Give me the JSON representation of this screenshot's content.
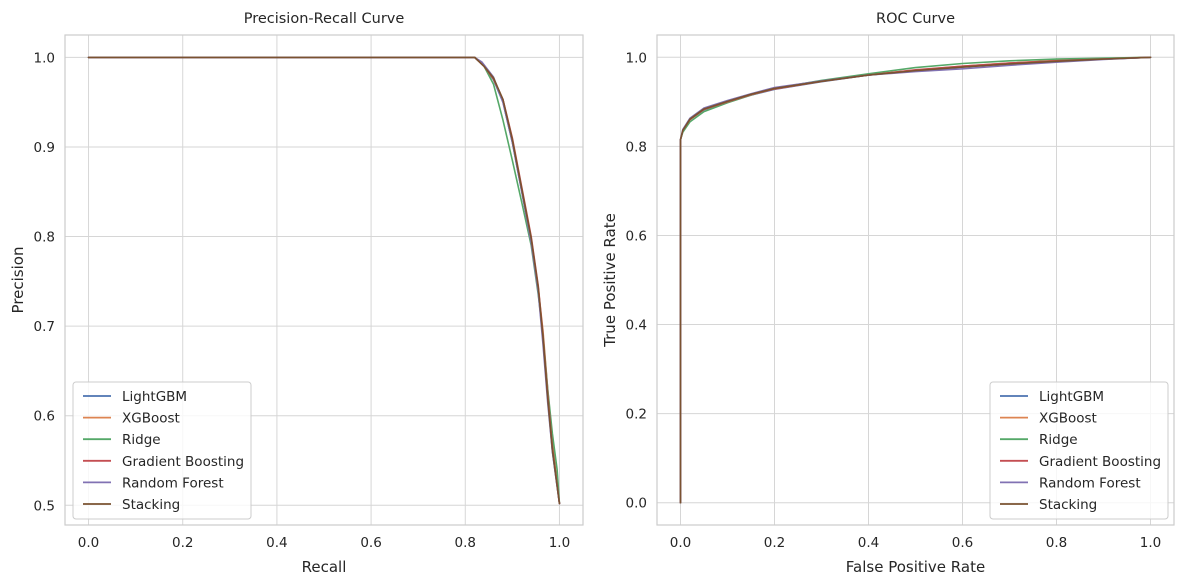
{
  "chart_data": [
    {
      "type": "line",
      "title": "Precision-Recall Curve",
      "xlabel": "Recall",
      "ylabel": "Precision",
      "xlim": [
        -0.05,
        1.05
      ],
      "ylim": [
        0.478,
        1.025
      ],
      "xticks": [
        0.0,
        0.2,
        0.4,
        0.6,
        0.8,
        1.0
      ],
      "xtick_labels": [
        "0.0",
        "0.2",
        "0.4",
        "0.6",
        "0.8",
        "1.0"
      ],
      "yticks": [
        0.5,
        0.6,
        0.7,
        0.8,
        0.9,
        1.0
      ],
      "ytick_labels": [
        "0.5",
        "0.6",
        "0.7",
        "0.8",
        "0.9",
        "1.0"
      ],
      "grid": true,
      "legend_position": "lower-left",
      "series": [
        {
          "name": "LightGBM",
          "color": "#4c72b0",
          "x": [
            0,
            0.82,
            0.84,
            0.86,
            0.88,
            0.9,
            0.92,
            0.94,
            0.955,
            0.965,
            0.975,
            0.985,
            1.0
          ],
          "y": [
            1.0,
            1.0,
            0.99,
            0.975,
            0.95,
            0.905,
            0.85,
            0.795,
            0.74,
            0.69,
            0.62,
            0.56,
            0.502
          ]
        },
        {
          "name": "XGBoost",
          "color": "#dd8452",
          "x": [
            0,
            0.82,
            0.84,
            0.86,
            0.88,
            0.9,
            0.92,
            0.94,
            0.955,
            0.965,
            0.975,
            0.985,
            1.0
          ],
          "y": [
            1.0,
            1.0,
            0.99,
            0.976,
            0.952,
            0.908,
            0.852,
            0.797,
            0.742,
            0.695,
            0.63,
            0.57,
            0.502
          ]
        },
        {
          "name": "Ridge",
          "color": "#55a868",
          "x": [
            0,
            0.82,
            0.84,
            0.86,
            0.87,
            0.88,
            0.9,
            0.92,
            0.94,
            0.955,
            0.965,
            0.975,
            0.985,
            0.995,
            1.0
          ],
          "y": [
            1.0,
            1.0,
            0.99,
            0.97,
            0.95,
            0.93,
            0.885,
            0.838,
            0.79,
            0.735,
            0.69,
            0.63,
            0.58,
            0.54,
            0.502
          ]
        },
        {
          "name": "Gradient Boosting",
          "color": "#c44e52",
          "x": [
            0,
            0.82,
            0.84,
            0.86,
            0.88,
            0.9,
            0.92,
            0.94,
            0.955,
            0.965,
            0.975,
            0.985,
            1.0
          ],
          "y": [
            1.0,
            1.0,
            0.99,
            0.976,
            0.953,
            0.91,
            0.855,
            0.8,
            0.745,
            0.69,
            0.625,
            0.565,
            0.502
          ]
        },
        {
          "name": "Random Forest",
          "color": "#8172b3",
          "x": [
            0,
            0.82,
            0.835,
            0.86,
            0.88,
            0.9,
            0.92,
            0.94,
            0.955,
            0.965,
            0.975,
            0.985,
            1.0
          ],
          "y": [
            1.0,
            1.0,
            0.995,
            0.978,
            0.95,
            0.905,
            0.85,
            0.793,
            0.738,
            0.68,
            0.615,
            0.56,
            0.502
          ]
        },
        {
          "name": "Stacking",
          "color": "#7a5230",
          "x": [
            0,
            0.82,
            0.84,
            0.86,
            0.88,
            0.9,
            0.92,
            0.94,
            0.955,
            0.965,
            0.975,
            0.985,
            1.0
          ],
          "y": [
            1.0,
            1.0,
            0.99,
            0.977,
            0.953,
            0.908,
            0.853,
            0.798,
            0.743,
            0.688,
            0.62,
            0.562,
            0.502
          ]
        }
      ]
    },
    {
      "type": "line",
      "title": "ROC Curve",
      "xlabel": "False Positive Rate",
      "ylabel": "True Positive Rate",
      "xlim": [
        -0.05,
        1.05
      ],
      "ylim": [
        -0.05,
        1.05
      ],
      "xticks": [
        0.0,
        0.2,
        0.4,
        0.6,
        0.8,
        1.0
      ],
      "xtick_labels": [
        "0.0",
        "0.2",
        "0.4",
        "0.6",
        "0.8",
        "1.0"
      ],
      "yticks": [
        0.0,
        0.2,
        0.4,
        0.6,
        0.8,
        1.0
      ],
      "ytick_labels": [
        "0.0",
        "0.2",
        "0.4",
        "0.6",
        "0.8",
        "1.0"
      ],
      "grid": true,
      "legend_position": "lower-right",
      "series": [
        {
          "name": "LightGBM",
          "color": "#4c72b0",
          "x": [
            0,
            0,
            0.005,
            0.02,
            0.05,
            0.1,
            0.15,
            0.2,
            0.3,
            0.4,
            0.5,
            0.6,
            0.7,
            0.8,
            0.9,
            1.0
          ],
          "y": [
            0,
            0.815,
            0.835,
            0.86,
            0.882,
            0.9,
            0.915,
            0.928,
            0.945,
            0.96,
            0.97,
            0.978,
            0.986,
            0.992,
            0.996,
            1.0
          ]
        },
        {
          "name": "XGBoost",
          "color": "#dd8452",
          "x": [
            0,
            0,
            0.005,
            0.02,
            0.05,
            0.1,
            0.15,
            0.2,
            0.3,
            0.4,
            0.5,
            0.6,
            0.7,
            0.8,
            0.9,
            1.0
          ],
          "y": [
            0,
            0.815,
            0.836,
            0.86,
            0.883,
            0.901,
            0.916,
            0.929,
            0.946,
            0.961,
            0.971,
            0.98,
            0.987,
            0.993,
            0.997,
            1.0
          ]
        },
        {
          "name": "Ridge",
          "color": "#55a868",
          "x": [
            0,
            0,
            0.005,
            0.02,
            0.05,
            0.1,
            0.15,
            0.2,
            0.3,
            0.4,
            0.5,
            0.6,
            0.7,
            0.8,
            0.9,
            1.0
          ],
          "y": [
            0,
            0.815,
            0.832,
            0.855,
            0.878,
            0.898,
            0.915,
            0.93,
            0.948,
            0.963,
            0.977,
            0.986,
            0.992,
            0.996,
            0.998,
            1.0
          ]
        },
        {
          "name": "Gradient Boosting",
          "color": "#c44e52",
          "x": [
            0,
            0,
            0.005,
            0.02,
            0.05,
            0.1,
            0.15,
            0.2,
            0.3,
            0.4,
            0.5,
            0.6,
            0.7,
            0.8,
            0.9,
            1.0
          ],
          "y": [
            0,
            0.815,
            0.836,
            0.86,
            0.883,
            0.9,
            0.916,
            0.929,
            0.946,
            0.96,
            0.972,
            0.98,
            0.987,
            0.992,
            0.996,
            1.0
          ]
        },
        {
          "name": "Random Forest",
          "color": "#8172b3",
          "x": [
            0,
            0,
            0.005,
            0.02,
            0.05,
            0.1,
            0.15,
            0.2,
            0.3,
            0.4,
            0.5,
            0.6,
            0.7,
            0.8,
            0.9,
            1.0
          ],
          "y": [
            0,
            0.815,
            0.838,
            0.863,
            0.886,
            0.903,
            0.918,
            0.932,
            0.947,
            0.96,
            0.968,
            0.974,
            0.982,
            0.989,
            0.995,
            1.0
          ]
        },
        {
          "name": "Stacking",
          "color": "#7a5230",
          "x": [
            0,
            0,
            0.005,
            0.02,
            0.05,
            0.1,
            0.15,
            0.2,
            0.3,
            0.4,
            0.5,
            0.6,
            0.7,
            0.8,
            0.9,
            1.0
          ],
          "y": [
            0,
            0.815,
            0.836,
            0.861,
            0.884,
            0.901,
            0.917,
            0.93,
            0.946,
            0.96,
            0.97,
            0.978,
            0.985,
            0.991,
            0.996,
            1.0
          ]
        }
      ]
    }
  ]
}
